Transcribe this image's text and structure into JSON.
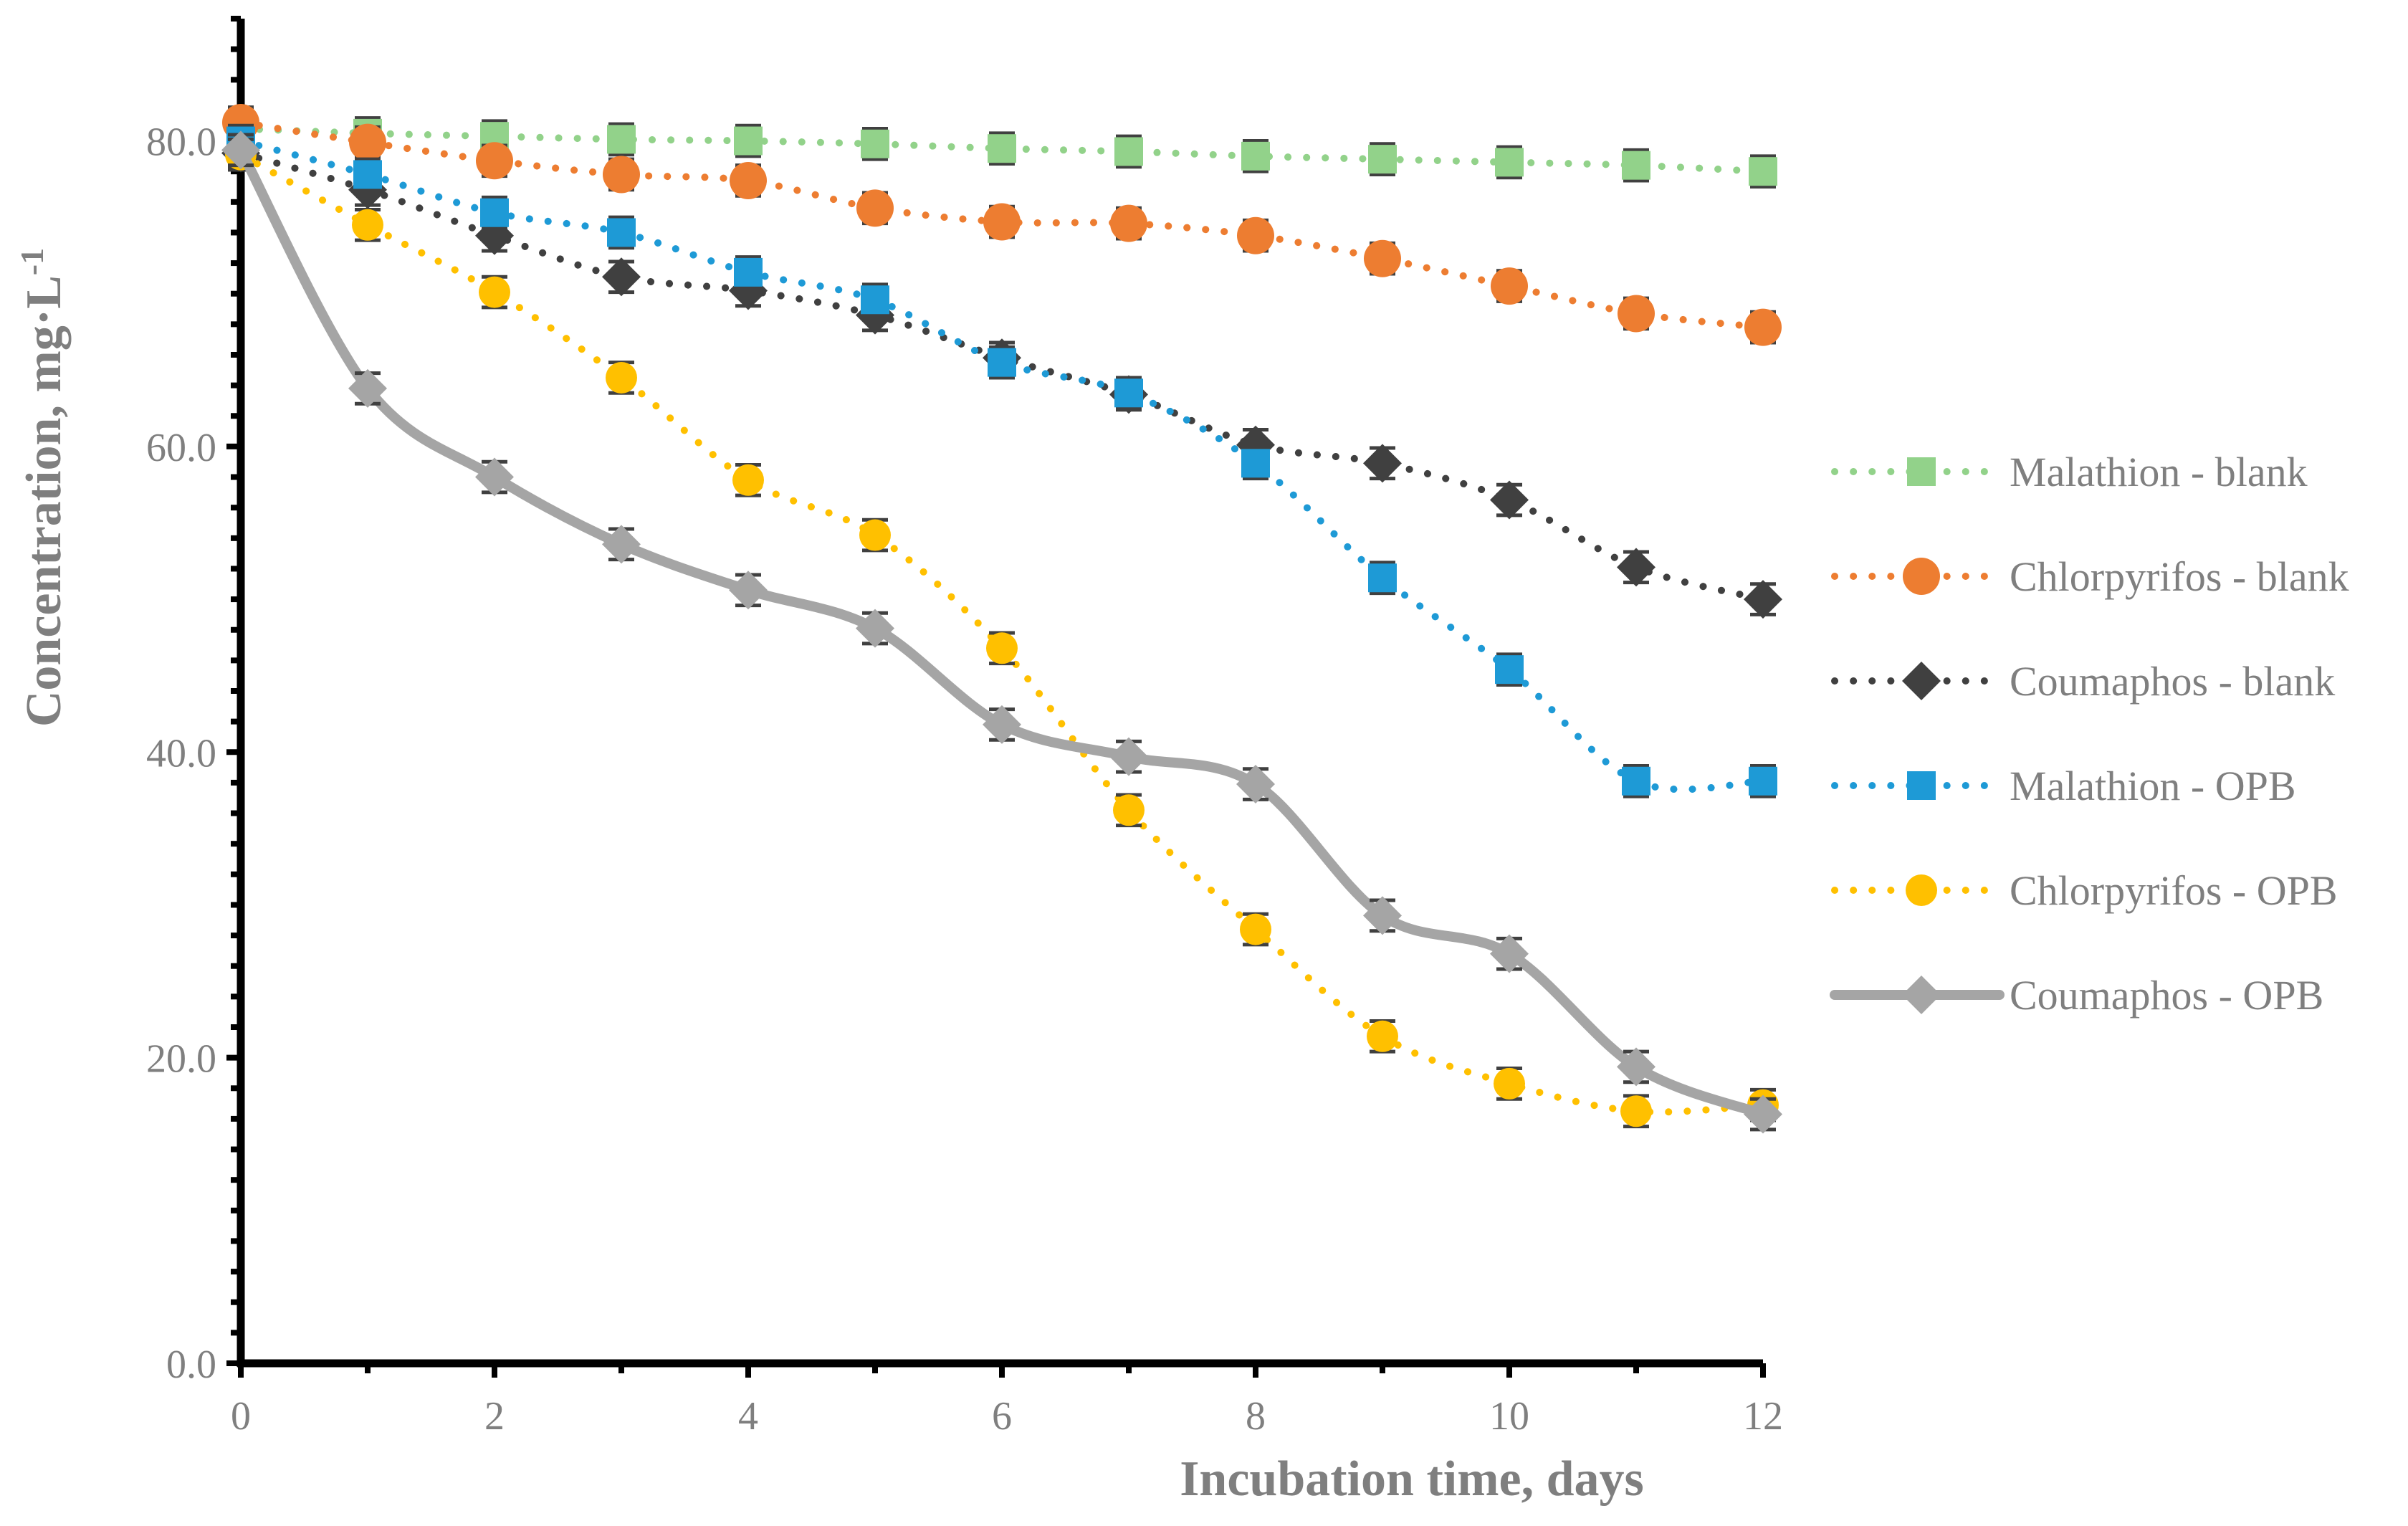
{
  "chart_data": {
    "type": "line",
    "title": "",
    "xlabel": "Incubation time, days",
    "ylabel_main": "Concentration, mg·L",
    "ylabel_sup": "-1",
    "xlim": [
      0,
      12
    ],
    "ylim": [
      0,
      88
    ],
    "x_ticks": [
      0,
      2,
      4,
      6,
      8,
      10,
      12
    ],
    "x_tick_labels": [
      "0",
      "2",
      "4",
      "6",
      "8",
      "10",
      "12"
    ],
    "y_ticks": [
      0,
      20,
      40,
      60,
      80
    ],
    "y_tick_labels": [
      "0.0",
      "20.0",
      "40.0",
      "60.0",
      "80.0"
    ],
    "x_minor_step": 1,
    "y_minor_step": 2,
    "grid": false,
    "legend_position": "right",
    "x": [
      0,
      1,
      2,
      3,
      4,
      5,
      6,
      7,
      8,
      9,
      10,
      11,
      12
    ],
    "error": 1.0,
    "series": [
      {
        "name": "Malathion - blank",
        "color": "#92d28a",
        "marker": "square",
        "line": "dotted",
        "values": [
          80.8,
          80.5,
          80.3,
          80.1,
          80.0,
          79.8,
          79.5,
          79.3,
          79.0,
          78.8,
          78.6,
          78.4,
          78.0
        ]
      },
      {
        "name": "Chlorpyrifos - blank",
        "color": "#ed7d31",
        "marker": "circle",
        "line": "dotted",
        "values": [
          81.2,
          79.9,
          78.7,
          77.8,
          77.4,
          75.6,
          74.7,
          74.6,
          73.8,
          72.3,
          70.5,
          68.7,
          67.8
        ]
      },
      {
        "name": "Coumaphos - blank",
        "color": "#404040",
        "marker": "diamond",
        "line": "dotted",
        "values": [
          79.2,
          76.8,
          73.8,
          71.1,
          70.2,
          68.6,
          65.8,
          63.4,
          60.1,
          58.9,
          56.5,
          52.1,
          50.0
        ]
      },
      {
        "name": "Malathion - OPB",
        "color": "#1e9ad6",
        "marker": "square",
        "line": "dotted",
        "values": [
          80.0,
          77.8,
          75.3,
          74.0,
          71.4,
          69.6,
          65.5,
          63.5,
          58.9,
          51.4,
          45.4,
          38.1,
          38.1
        ]
      },
      {
        "name": "Chlorpyrifos - OPB",
        "color": "#ffc000",
        "marker": "circle",
        "line": "dotted",
        "values": [
          79.1,
          74.5,
          70.1,
          64.5,
          57.8,
          54.2,
          46.8,
          36.2,
          28.4,
          21.4,
          18.3,
          16.5,
          16.9
        ]
      },
      {
        "name": "Coumaphos - OPB",
        "color": "#a5a5a5",
        "marker": "diamond",
        "line": "solid",
        "values": [
          79.4,
          63.8,
          58.0,
          53.6,
          50.6,
          48.1,
          41.8,
          39.7,
          37.9,
          29.3,
          26.8,
          19.4,
          16.3
        ]
      }
    ]
  }
}
